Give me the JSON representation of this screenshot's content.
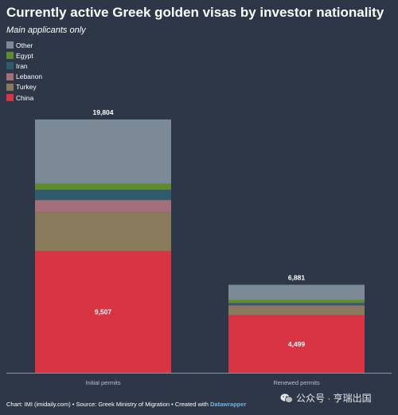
{
  "title": "Currently active Greek golden visas by investor nationality",
  "subtitle": "Main applicants only",
  "legend": [
    {
      "label": "Other",
      "color": "#7b8a96"
    },
    {
      "label": "Egypt",
      "color": "#5f8a2e"
    },
    {
      "label": "Iran",
      "color": "#2f5b6e"
    },
    {
      "label": "Lebanon",
      "color": "#a36f7b"
    },
    {
      "label": "Turkey",
      "color": "#8a7a5c"
    },
    {
      "label": "China",
      "color": "#d93444"
    }
  ],
  "chart_data": {
    "type": "bar",
    "stacked": true,
    "categories": [
      "Initial permits",
      "Renewed permits"
    ],
    "totals": [
      19804,
      6881
    ],
    "total_labels": [
      "19,804",
      "6,881"
    ],
    "series": [
      {
        "name": "China",
        "color": "#d93444",
        "values": [
          9507,
          4499
        ],
        "labels": [
          "9,507",
          "4,499"
        ]
      },
      {
        "name": "Turkey",
        "color": "#8a7a5c",
        "values": [
          3050,
          650
        ],
        "labels": [
          "",
          ""
        ]
      },
      {
        "name": "Lebanon",
        "color": "#a36f7b",
        "values": [
          950,
          120
        ],
        "labels": [
          "",
          ""
        ]
      },
      {
        "name": "Iran",
        "color": "#2f5b6e",
        "values": [
          800,
          180
        ],
        "labels": [
          "",
          ""
        ]
      },
      {
        "name": "Egypt",
        "color": "#5f8a2e",
        "values": [
          480,
          250
        ],
        "labels": [
          "",
          ""
        ]
      },
      {
        "name": "Other",
        "color": "#7b8a96",
        "values": [
          5017,
          1182
        ],
        "labels": [
          "",
          ""
        ]
      }
    ],
    "ymax": 19804
  },
  "footer": {
    "text": "Chart: IMI (imidaily.com) • Source: Greek Ministry of Migration • Created with ",
    "brand": "Datawrapper"
  },
  "watermark": "公众号 · 亨瑞出国"
}
